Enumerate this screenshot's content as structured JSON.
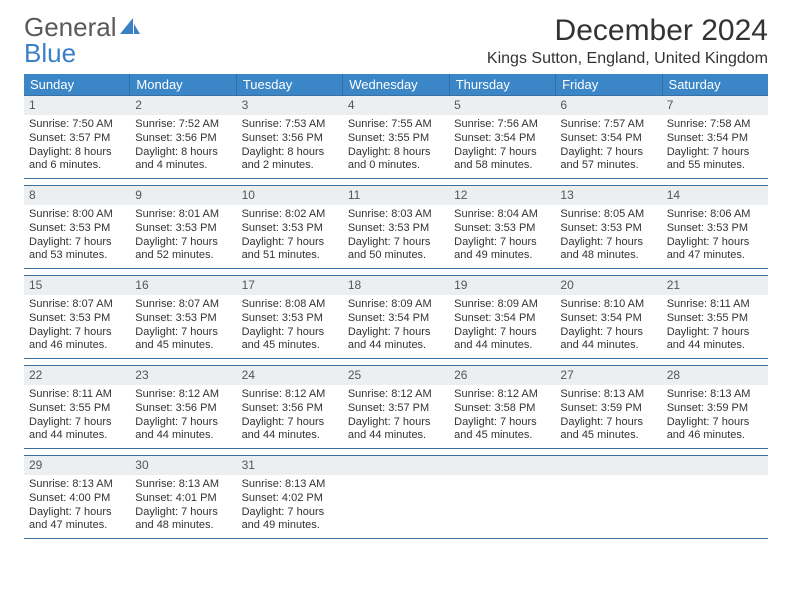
{
  "brand": {
    "word1": "General",
    "word2": "Blue"
  },
  "title": "December 2024",
  "location": "Kings Sutton, England, United Kingdom",
  "colors": {
    "header_bg": "#3b86c7",
    "header_text": "#ffffff",
    "rule": "#3b6fa0",
    "daynum_bg": "#eceff1",
    "logo_gray": "#595959",
    "logo_blue": "#3b7fc4"
  },
  "dow": [
    "Sunday",
    "Monday",
    "Tuesday",
    "Wednesday",
    "Thursday",
    "Friday",
    "Saturday"
  ],
  "weeks": [
    [
      {
        "n": "1",
        "sr": "7:50 AM",
        "ss": "3:57 PM",
        "dl": "8 hours and 6 minutes."
      },
      {
        "n": "2",
        "sr": "7:52 AM",
        "ss": "3:56 PM",
        "dl": "8 hours and 4 minutes."
      },
      {
        "n": "3",
        "sr": "7:53 AM",
        "ss": "3:56 PM",
        "dl": "8 hours and 2 minutes."
      },
      {
        "n": "4",
        "sr": "7:55 AM",
        "ss": "3:55 PM",
        "dl": "8 hours and 0 minutes."
      },
      {
        "n": "5",
        "sr": "7:56 AM",
        "ss": "3:54 PM",
        "dl": "7 hours and 58 minutes."
      },
      {
        "n": "6",
        "sr": "7:57 AM",
        "ss": "3:54 PM",
        "dl": "7 hours and 57 minutes."
      },
      {
        "n": "7",
        "sr": "7:58 AM",
        "ss": "3:54 PM",
        "dl": "7 hours and 55 minutes."
      }
    ],
    [
      {
        "n": "8",
        "sr": "8:00 AM",
        "ss": "3:53 PM",
        "dl": "7 hours and 53 minutes."
      },
      {
        "n": "9",
        "sr": "8:01 AM",
        "ss": "3:53 PM",
        "dl": "7 hours and 52 minutes."
      },
      {
        "n": "10",
        "sr": "8:02 AM",
        "ss": "3:53 PM",
        "dl": "7 hours and 51 minutes."
      },
      {
        "n": "11",
        "sr": "8:03 AM",
        "ss": "3:53 PM",
        "dl": "7 hours and 50 minutes."
      },
      {
        "n": "12",
        "sr": "8:04 AM",
        "ss": "3:53 PM",
        "dl": "7 hours and 49 minutes."
      },
      {
        "n": "13",
        "sr": "8:05 AM",
        "ss": "3:53 PM",
        "dl": "7 hours and 48 minutes."
      },
      {
        "n": "14",
        "sr": "8:06 AM",
        "ss": "3:53 PM",
        "dl": "7 hours and 47 minutes."
      }
    ],
    [
      {
        "n": "15",
        "sr": "8:07 AM",
        "ss": "3:53 PM",
        "dl": "7 hours and 46 minutes."
      },
      {
        "n": "16",
        "sr": "8:07 AM",
        "ss": "3:53 PM",
        "dl": "7 hours and 45 minutes."
      },
      {
        "n": "17",
        "sr": "8:08 AM",
        "ss": "3:53 PM",
        "dl": "7 hours and 45 minutes."
      },
      {
        "n": "18",
        "sr": "8:09 AM",
        "ss": "3:54 PM",
        "dl": "7 hours and 44 minutes."
      },
      {
        "n": "19",
        "sr": "8:09 AM",
        "ss": "3:54 PM",
        "dl": "7 hours and 44 minutes."
      },
      {
        "n": "20",
        "sr": "8:10 AM",
        "ss": "3:54 PM",
        "dl": "7 hours and 44 minutes."
      },
      {
        "n": "21",
        "sr": "8:11 AM",
        "ss": "3:55 PM",
        "dl": "7 hours and 44 minutes."
      }
    ],
    [
      {
        "n": "22",
        "sr": "8:11 AM",
        "ss": "3:55 PM",
        "dl": "7 hours and 44 minutes."
      },
      {
        "n": "23",
        "sr": "8:12 AM",
        "ss": "3:56 PM",
        "dl": "7 hours and 44 minutes."
      },
      {
        "n": "24",
        "sr": "8:12 AM",
        "ss": "3:56 PM",
        "dl": "7 hours and 44 minutes."
      },
      {
        "n": "25",
        "sr": "8:12 AM",
        "ss": "3:57 PM",
        "dl": "7 hours and 44 minutes."
      },
      {
        "n": "26",
        "sr": "8:12 AM",
        "ss": "3:58 PM",
        "dl": "7 hours and 45 minutes."
      },
      {
        "n": "27",
        "sr": "8:13 AM",
        "ss": "3:59 PM",
        "dl": "7 hours and 45 minutes."
      },
      {
        "n": "28",
        "sr": "8:13 AM",
        "ss": "3:59 PM",
        "dl": "7 hours and 46 minutes."
      }
    ],
    [
      {
        "n": "29",
        "sr": "8:13 AM",
        "ss": "4:00 PM",
        "dl": "7 hours and 47 minutes."
      },
      {
        "n": "30",
        "sr": "8:13 AM",
        "ss": "4:01 PM",
        "dl": "7 hours and 48 minutes."
      },
      {
        "n": "31",
        "sr": "8:13 AM",
        "ss": "4:02 PM",
        "dl": "7 hours and 49 minutes."
      },
      {
        "empty": true
      },
      {
        "empty": true
      },
      {
        "empty": true
      },
      {
        "empty": true
      }
    ]
  ],
  "labels": {
    "sunrise": "Sunrise:",
    "sunset": "Sunset:",
    "daylight": "Daylight:"
  }
}
